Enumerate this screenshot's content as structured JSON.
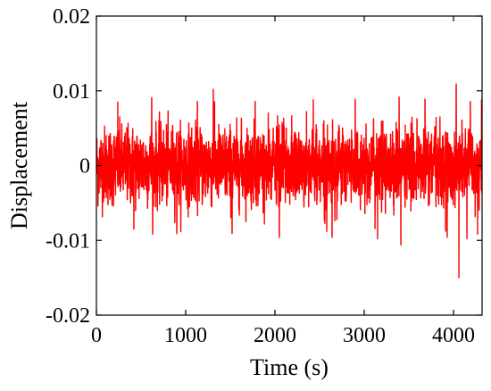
{
  "chart_data": {
    "type": "line",
    "title": "",
    "xlabel": "Time (s)",
    "ylabel": "Displacement",
    "xlim": [
      0,
      4320
    ],
    "ylim": [
      -0.02,
      0.02
    ],
    "x_ticks": [
      0,
      1000,
      2000,
      3000,
      4000
    ],
    "x_tick_labels": [
      "0",
      "1000",
      "2000",
      "3000",
      "4000"
    ],
    "y_ticks": [
      -0.02,
      -0.01,
      0,
      0.01,
      0.02
    ],
    "y_tick_labels": [
      "-0.02",
      "-0.01",
      "0",
      "0.01",
      "0.02"
    ],
    "grid": false,
    "legend": "none",
    "series": [
      {
        "color": "#ff0000",
        "shadow_color": "#8b4513",
        "description_values": {
          "x_start": 0,
          "x_end": 4320,
          "typical_band": [
            -0.006,
            0.006
          ],
          "peaks_x": [
            240,
            420,
            620,
            900,
            1130,
            1310,
            1520,
            1780,
            2050,
            2430,
            2640,
            2900,
            3150,
            3410,
            3680,
            3930,
            4030,
            4060,
            4150,
            4270
          ],
          "peaks_y": [
            0.0085,
            -0.0085,
            0.009,
            -0.009,
            0.0085,
            0.0102,
            -0.009,
            0.0085,
            -0.0095,
            0.0088,
            -0.0095,
            0.0088,
            -0.0098,
            -0.0105,
            0.0088,
            -0.0095,
            0.0108,
            -0.015,
            -0.0098,
            -0.0092
          ]
        }
      }
    ]
  }
}
